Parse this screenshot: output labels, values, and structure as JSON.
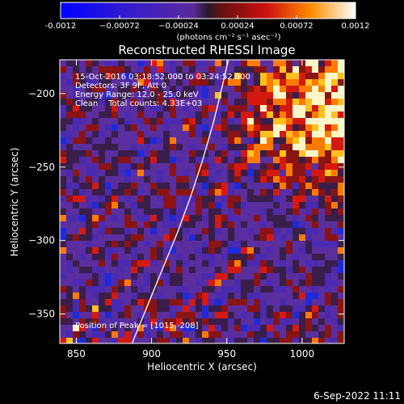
{
  "chart_data": {
    "type": "heatmap",
    "title": "Reconstructed RHESSI Image",
    "xlabel": "Heliocentric X (arcsec)",
    "ylabel": "Heliocentric Y (arcsec)",
    "xlim": [
      839,
      1028
    ],
    "ylim": [
      -370,
      -177
    ],
    "x_ticks": [
      850,
      900,
      950,
      1000
    ],
    "y_ticks": [
      -200,
      -250,
      -300,
      -350
    ],
    "colorbar": {
      "min": -0.0012,
      "max": 0.0012,
      "tick_values": [
        -0.0012,
        -0.00072,
        -0.00024,
        0.00024,
        0.00072,
        0.0012
      ],
      "tick_labels": [
        "-0.0012",
        "−0.00072",
        "−0.00024",
        "0.00024",
        "0.00072",
        "0.0012"
      ],
      "units_label": "(photons cm⁻² s⁻¹ asec⁻²)"
    },
    "annotations": [
      "15-Oct-2016 03:18:52.000 to 03:24:52.000",
      "Detectors: 3F 9F, Att 0",
      "Energy Range: 12.0 - 25.0 keV",
      "Clean    Total counts: 4.33E+03"
    ],
    "peak_label": "Position of Peak = [1015,-208]",
    "peak_position": [
      1015,
      -208
    ],
    "limb_curve": {
      "x": [
        887,
        897,
        907,
        917,
        926,
        934,
        941,
        947,
        951
      ],
      "y": [
        -370,
        -345,
        -320,
        -295,
        -270,
        -245,
        -220,
        -195,
        -177
      ]
    },
    "grid": false
  },
  "footer": {
    "timestamp": "6-Sep-2022 11:11"
  }
}
